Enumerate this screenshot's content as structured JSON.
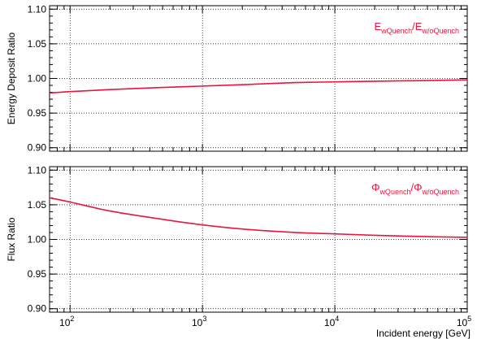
{
  "chart_data": [
    {
      "type": "line",
      "ylabel": "Energy Deposit Ratio",
      "ylim": [
        0.895,
        1.105
      ],
      "yticks": [
        0.9,
        0.95,
        1.0,
        1.05,
        1.1
      ],
      "ytick_labels": [
        "0.90",
        "0.95",
        "1.00",
        "1.05",
        "1.10"
      ],
      "xlim": [
        70,
        100000
      ],
      "xscale": "log",
      "grid": true,
      "legend": {
        "position": "top-right",
        "color": "#e8163c",
        "base1": "E",
        "sub1": "wQuench",
        "sep": "/",
        "base2": "E",
        "sub2": "w/oQuench"
      },
      "series": [
        {
          "color": "#e8163c",
          "x": [
            70,
            100,
            200,
            500,
            1000,
            2000,
            5000,
            10000,
            20000,
            50000,
            100000
          ],
          "y": [
            0.979,
            0.981,
            0.984,
            0.987,
            0.989,
            0.991,
            0.994,
            0.995,
            0.996,
            0.997,
            0.998
          ]
        }
      ]
    },
    {
      "type": "line",
      "ylabel": "Flux Ratio",
      "ylim": [
        0.895,
        1.105
      ],
      "yticks": [
        0.9,
        0.95,
        1.0,
        1.05,
        1.1
      ],
      "ytick_labels": [
        "0.90",
        "0.95",
        "1.00",
        "1.05",
        "1.10"
      ],
      "xlim": [
        70,
        100000
      ],
      "xscale": "log",
      "xlabel": "Incident energy [GeV]",
      "xticks": [
        {
          "value": 100,
          "base": "10",
          "exp": "2"
        },
        {
          "value": 1000,
          "base": "10",
          "exp": "3"
        },
        {
          "value": 10000,
          "base": "10",
          "exp": "4"
        },
        {
          "value": 100000,
          "base": "10",
          "exp": "5"
        }
      ],
      "grid": true,
      "legend": {
        "position": "top-right",
        "color": "#e8163c",
        "base1": "Φ",
        "sub1": "wQuench",
        "sep": "/",
        "base2": "Φ",
        "sub2": "w/oQuench"
      },
      "series": [
        {
          "color": "#e8163c",
          "x": [
            70,
            100,
            200,
            500,
            1000,
            2000,
            5000,
            10000,
            20000,
            50000,
            100000
          ],
          "y": [
            1.06,
            1.054,
            1.041,
            1.029,
            1.021,
            1.015,
            1.01,
            1.008,
            1.006,
            1.004,
            1.003
          ]
        }
      ]
    }
  ]
}
